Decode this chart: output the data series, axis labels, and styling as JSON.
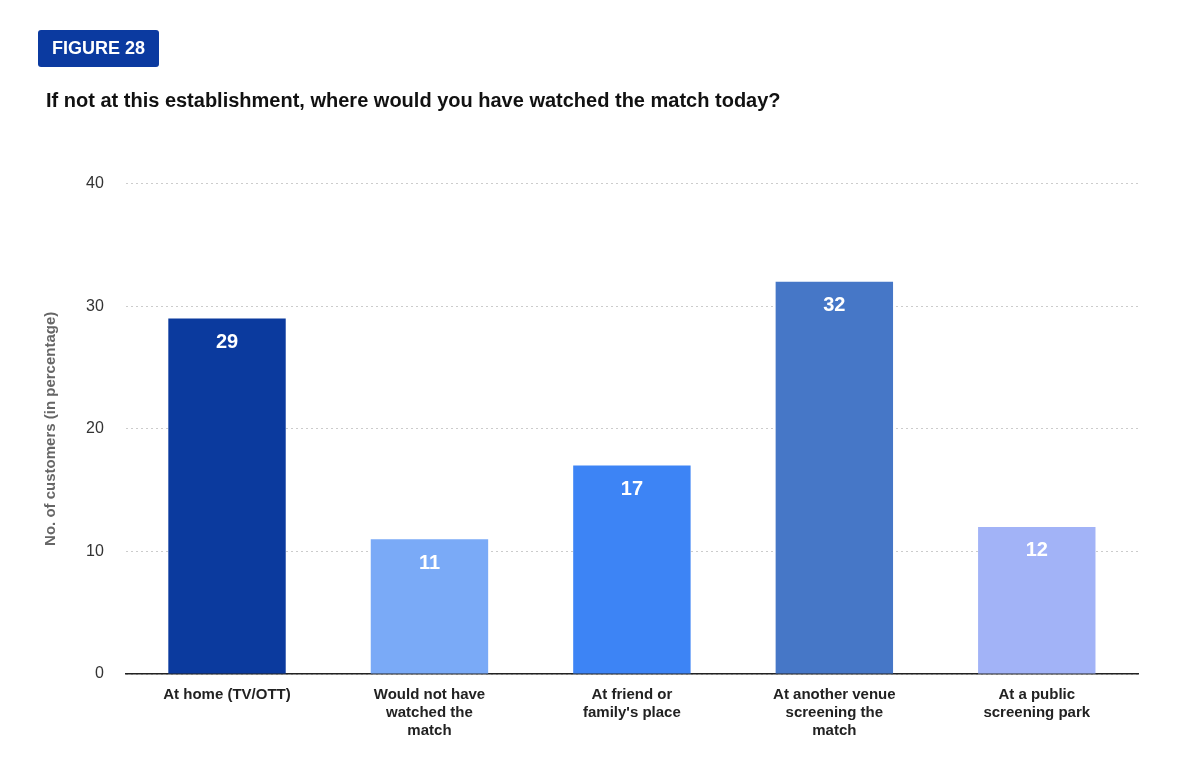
{
  "chart_data": {
    "type": "bar",
    "title": "If not at this establishment, where would you have watched the match today?",
    "annotations": [
      "FIGURE 28"
    ],
    "categories": [
      "At home (TV/OTT)",
      "Would not have watched the match",
      "At friend or family's place",
      "At another venue screening the match",
      "At a public screening park"
    ],
    "values": [
      29,
      11,
      17,
      32,
      12
    ],
    "colors": [
      "#0b3a9e",
      "#7aaaf7",
      "#3d84f5",
      "#4677c7",
      "#a2b3f7"
    ],
    "ylabel": "No. of customers (in percentage)",
    "ylim": [
      0,
      40
    ],
    "yticks": [
      0,
      10,
      20,
      30,
      40
    ],
    "grid": "y",
    "data_labels": true,
    "legend": false
  }
}
